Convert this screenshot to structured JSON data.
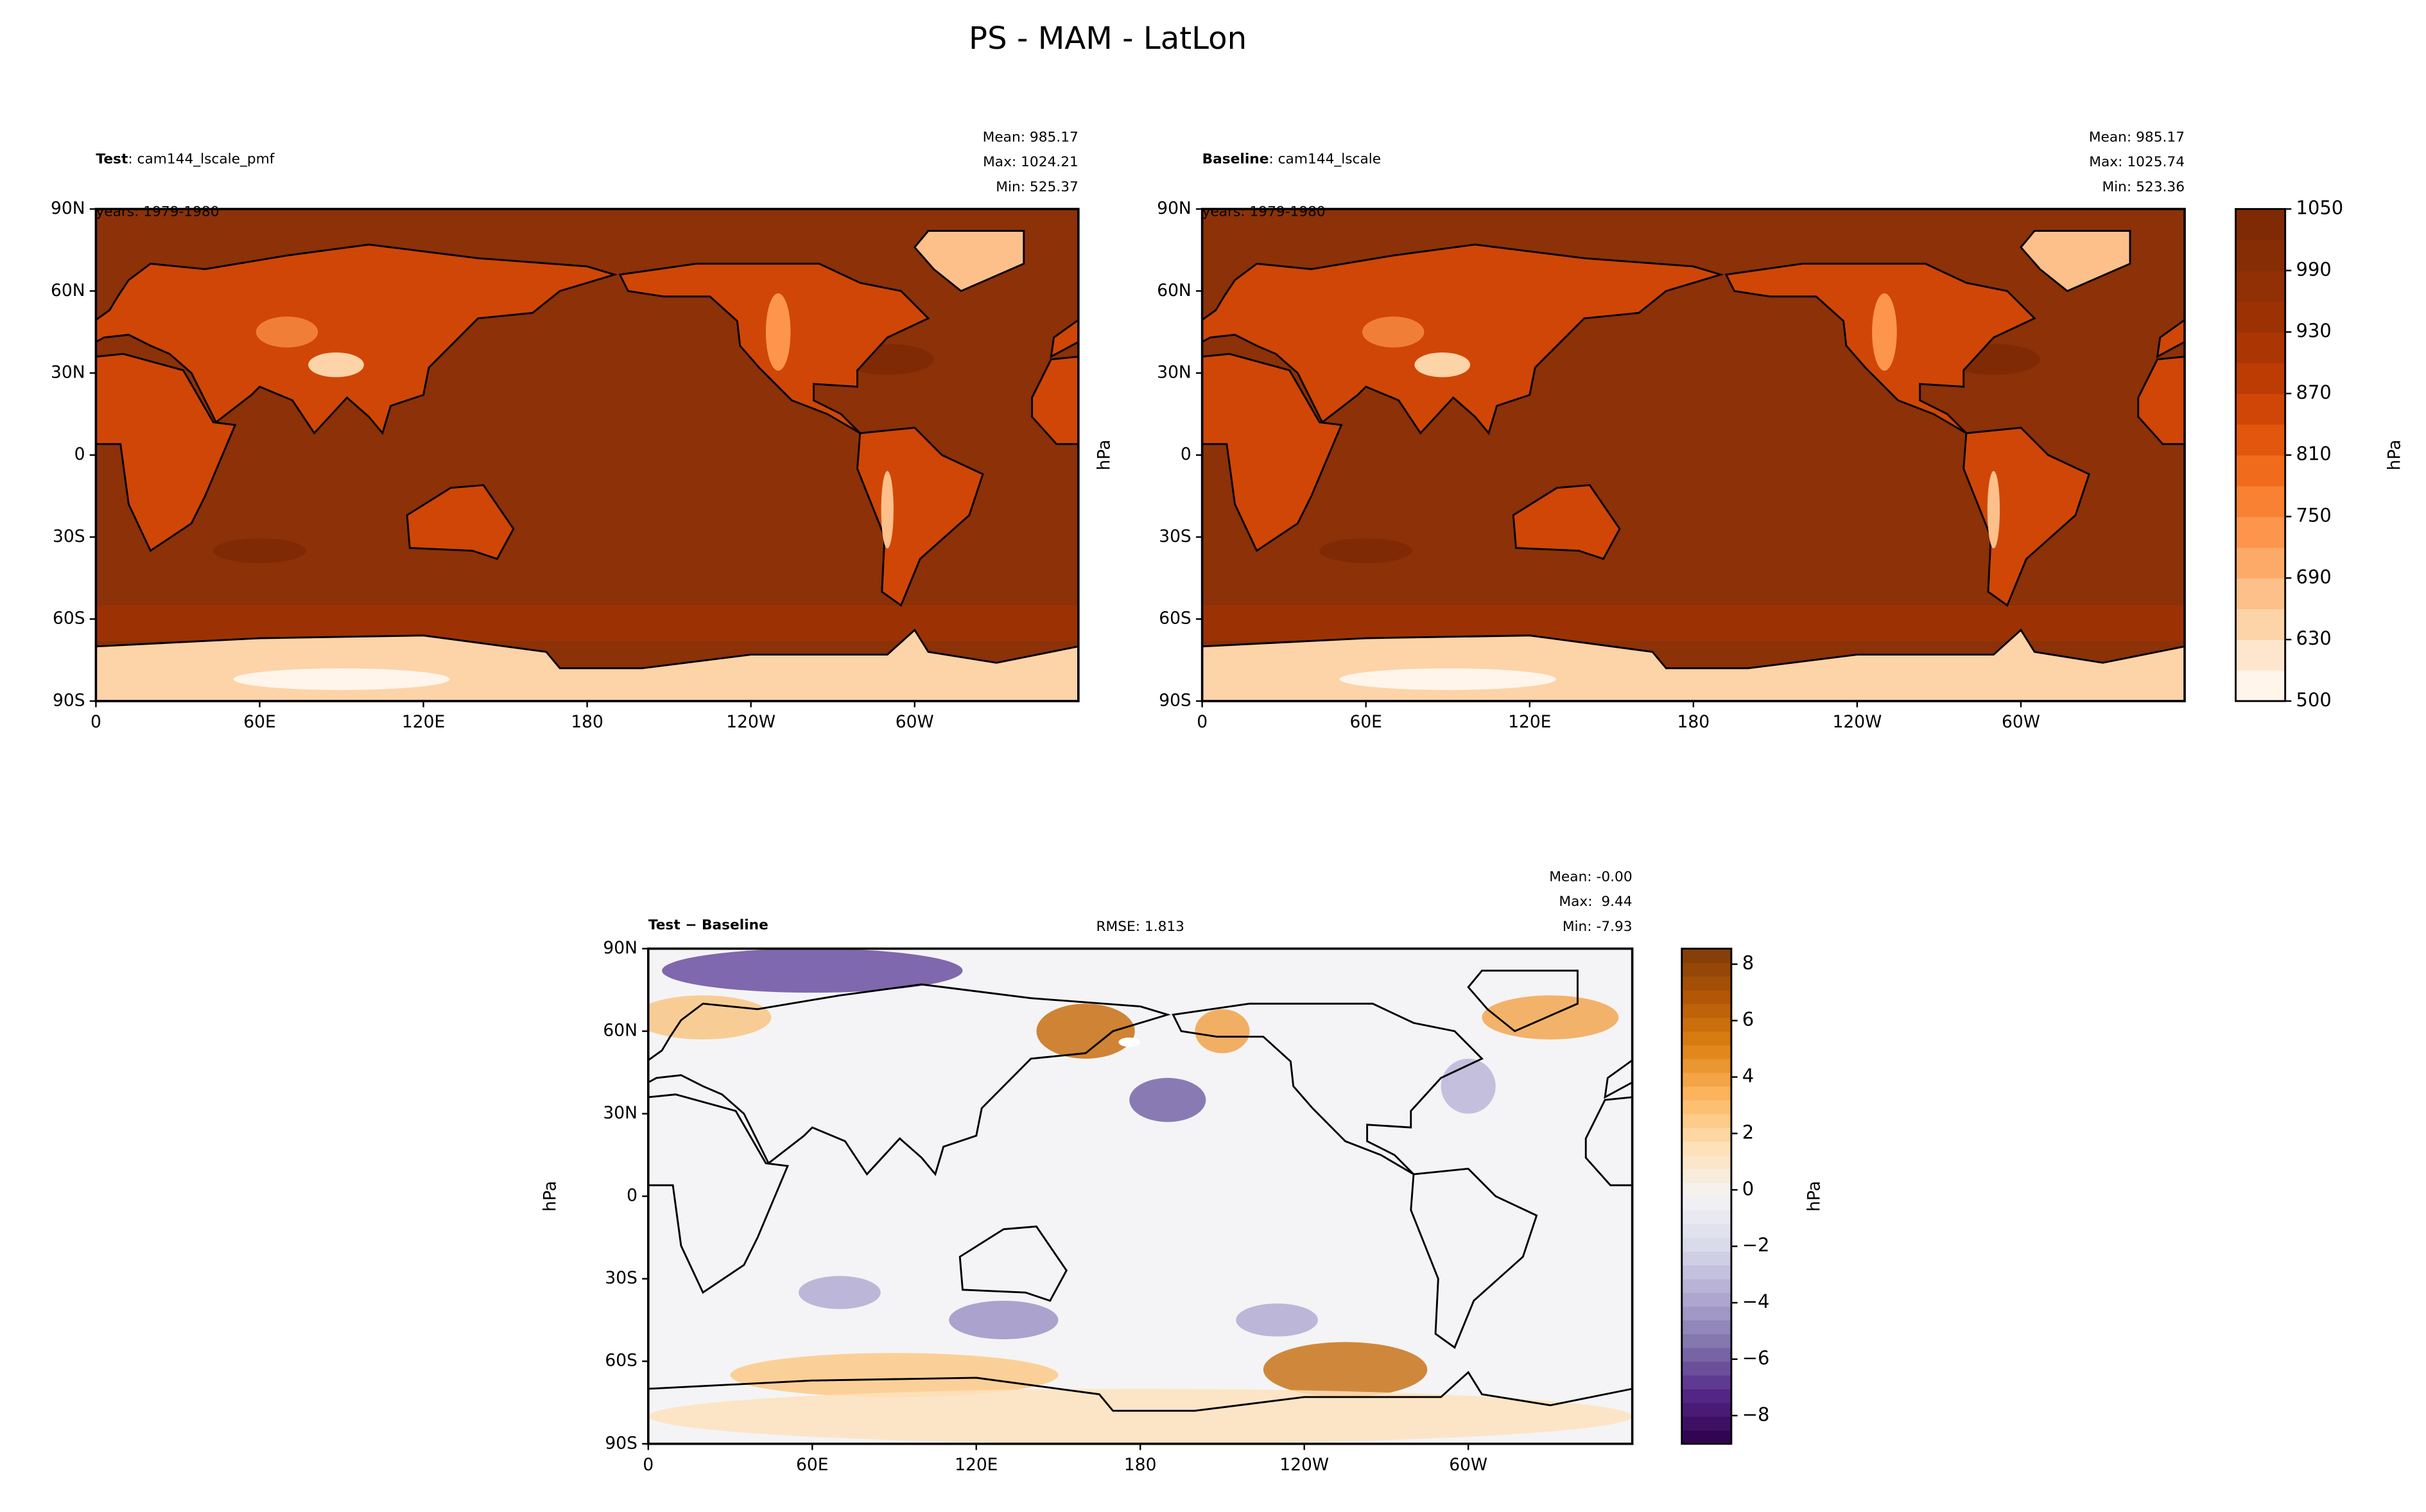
{
  "title": "PS - MAM - LatLon",
  "chart_data": [
    {
      "type": "map",
      "label": "Test",
      "case": ": cam144_lscale_pmf",
      "years": "years: 1979-1980",
      "stats": [
        "Mean: 985.17",
        "Max: 1024.21",
        "Min: 525.37"
      ],
      "xlim": [
        0,
        360
      ],
      "ylim": [
        -90,
        90
      ],
      "xticks": [
        0,
        {
          "value": 60,
          "label": "60E"
        },
        {
          "value": 120,
          "label": "120E"
        },
        180,
        {
          "value": 240,
          "label": "120W"
        },
        {
          "value": 300,
          "label": "60W"
        }
      ],
      "yticks": [
        {
          "value": -90,
          "label": "90S"
        },
        {
          "value": -60,
          "label": "60S"
        },
        {
          "value": -30,
          "label": "30S"
        },
        0,
        {
          "value": 30,
          "label": "30N"
        },
        {
          "value": 60,
          "label": "60N"
        },
        {
          "value": 90,
          "label": "90N"
        }
      ]
    },
    {
      "type": "map",
      "label": "Baseline",
      "case": ": cam144_lscale",
      "years": "years: 1979-1980",
      "stats": [
        "Mean: 985.17",
        "Max: 1025.74",
        "Min: 523.36"
      ],
      "y_label": "hPa",
      "xlim": [
        0,
        360
      ],
      "ylim": [
        -90,
        90
      ],
      "xticks": [
        0,
        {
          "value": 60,
          "label": "60E"
        },
        {
          "value": 120,
          "label": "120E"
        },
        180,
        {
          "value": 240,
          "label": "120W"
        },
        {
          "value": 300,
          "label": "60W"
        }
      ],
      "yticks": [
        {
          "value": -90,
          "label": "90S"
        },
        {
          "value": -60,
          "label": "60S"
        },
        {
          "value": -30,
          "label": "30S"
        },
        0,
        {
          "value": 30,
          "label": "30N"
        },
        {
          "value": 60,
          "label": "60N"
        },
        {
          "value": 90,
          "label": "90N"
        }
      ]
    },
    {
      "type": "diffmap",
      "label": "Test − Baseline",
      "rmse": "RMSE: 1.813",
      "stats": [
        "Mean: -0.00",
        "Max:  9.44",
        "Min: -7.93"
      ],
      "y_label": "hPa",
      "xlim": [
        0,
        360
      ],
      "ylim": [
        -90,
        90
      ],
      "xticks": [
        0,
        {
          "value": 60,
          "label": "60E"
        },
        {
          "value": 120,
          "label": "120E"
        },
        180,
        {
          "value": 240,
          "label": "120W"
        },
        {
          "value": 300,
          "label": "60W"
        }
      ],
      "yticks": [
        {
          "value": -90,
          "label": "90S"
        },
        {
          "value": -60,
          "label": "60S"
        },
        {
          "value": -30,
          "label": "30S"
        },
        0,
        {
          "value": 30,
          "label": "30N"
        },
        {
          "value": 60,
          "label": "60N"
        },
        {
          "value": 90,
          "label": "90N"
        }
      ]
    }
  ],
  "colorbars": [
    {
      "label": "hPa",
      "levels": [
        500,
        600,
        630,
        660,
        690,
        720,
        750,
        780,
        810,
        840,
        870,
        900,
        930,
        960,
        990,
        1020,
        1050
      ],
      "ticks": [
        500,
        630,
        690,
        750,
        810,
        870,
        930,
        990,
        1050
      ],
      "colors": [
        "#fff5eb",
        "#fee6ce",
        "#fdd3a8",
        "#fdc08a",
        "#fdaa68",
        "#fd954d",
        "#f98133",
        "#f06b1c",
        "#e2560d",
        "#d04606",
        "#bd3c04",
        "#ab3603",
        "#9c3203",
        "#912f05",
        "#872d06",
        "#7f2a05"
      ]
    },
    {
      "label": "hPa",
      "lim": [
        -9,
        8.55
      ],
      "ticks": [
        {
          "value": -8,
          "label": "−8"
        },
        {
          "value": -6,
          "label": "−6"
        },
        {
          "value": -4,
          "label": "−4"
        },
        {
          "value": -2,
          "label": "−2"
        },
        0,
        2,
        4,
        6,
        8
      ],
      "colors": [
        "#2d004b",
        "#542788",
        "#8073ac",
        "#b2abd2",
        "#d8daeb",
        "#f4f4f6",
        "#fee0b6",
        "#fdb863",
        "#e08214",
        "#b35806",
        "#7f3b08"
      ]
    }
  ]
}
